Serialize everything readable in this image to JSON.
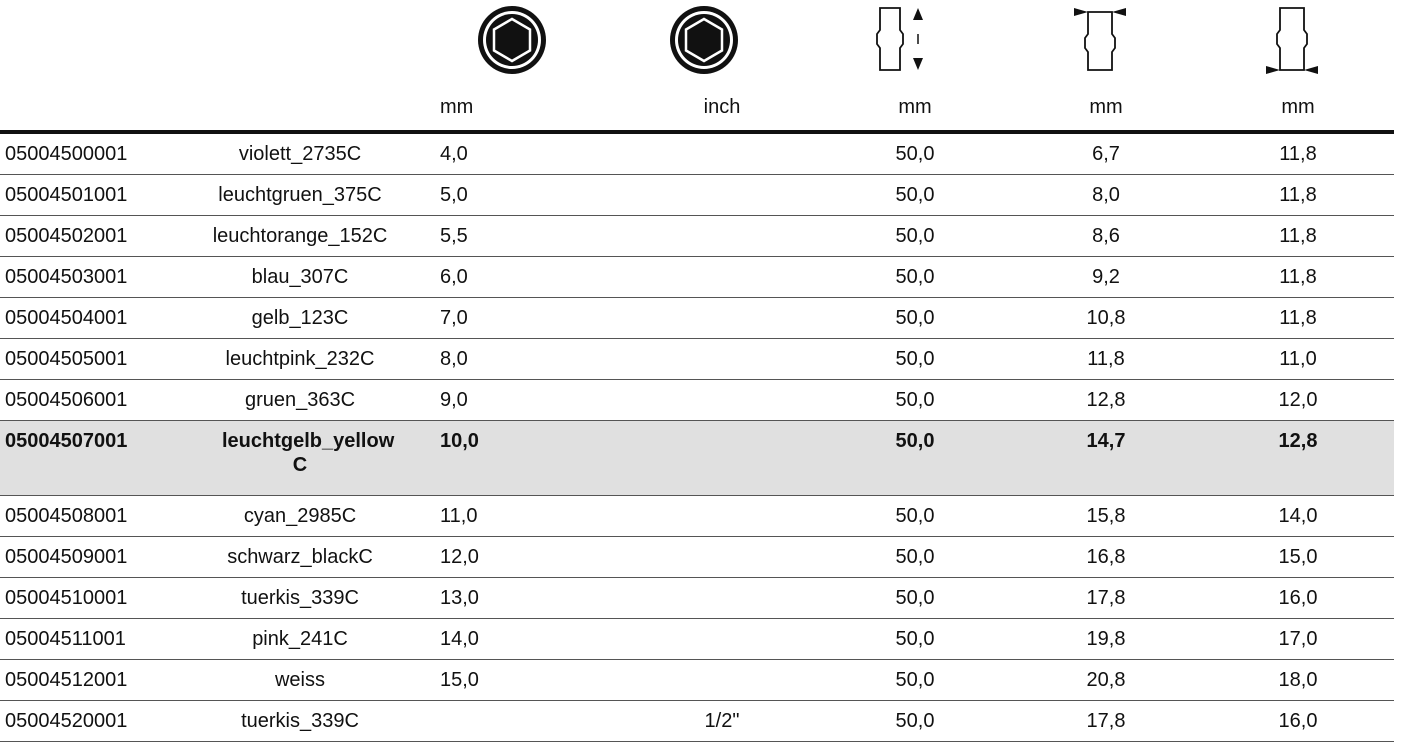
{
  "icons": [
    {
      "name": "hexagon-socket-mm-icon"
    },
    {
      "name": "hexagon-socket-inch-icon"
    },
    {
      "name": "socket-length-icon"
    },
    {
      "name": "socket-top-diameter-icon"
    },
    {
      "name": "socket-bottom-diameter-icon"
    }
  ],
  "columns": [
    "",
    "",
    "mm",
    "inch",
    "mm",
    "mm",
    "mm"
  ],
  "rows": [
    {
      "code": "05004500001",
      "color": "violett_2735C",
      "mm": "4,0",
      "inch": "",
      "c3": "50,0",
      "c4": "6,7",
      "c5": "11,8",
      "highlight": false
    },
    {
      "code": "05004501001",
      "color": "leuchtgruen_375C",
      "mm": "5,0",
      "inch": "",
      "c3": "50,0",
      "c4": "8,0",
      "c5": "11,8",
      "highlight": false
    },
    {
      "code": "05004502001",
      "color": "leuchtorange_152C",
      "mm": "5,5",
      "inch": "",
      "c3": "50,0",
      "c4": "8,6",
      "c5": "11,8",
      "highlight": false
    },
    {
      "code": "05004503001",
      "color": "blau_307C",
      "mm": "6,0",
      "inch": "",
      "c3": "50,0",
      "c4": "9,2",
      "c5": "11,8",
      "highlight": false
    },
    {
      "code": "05004504001",
      "color": "gelb_123C",
      "mm": "7,0",
      "inch": "",
      "c3": "50,0",
      "c4": "10,8",
      "c5": "11,8",
      "highlight": false
    },
    {
      "code": "05004505001",
      "color": "leuchtpink_232C",
      "mm": "8,0",
      "inch": "",
      "c3": "50,0",
      "c4": "11,8",
      "c5": "11,0",
      "highlight": false
    },
    {
      "code": "05004506001",
      "color": "gruen_363C",
      "mm": "9,0",
      "inch": "",
      "c3": "50,0",
      "c4": "12,8",
      "c5": "12,0",
      "highlight": false
    },
    {
      "code": "05004507001",
      "color": "leuchtgelb_yellow C",
      "mm": "10,0",
      "inch": "",
      "c3": "50,0",
      "c4": "14,7",
      "c5": "12,8",
      "highlight": true
    },
    {
      "code": "05004508001",
      "color": "cyan_2985C",
      "mm": "11,0",
      "inch": "",
      "c3": "50,0",
      "c4": "15,8",
      "c5": "14,0",
      "highlight": false
    },
    {
      "code": "05004509001",
      "color": "schwarz_blackC",
      "mm": "12,0",
      "inch": "",
      "c3": "50,0",
      "c4": "16,8",
      "c5": "15,0",
      "highlight": false
    },
    {
      "code": "05004510001",
      "color": "tuerkis_339C",
      "mm": "13,0",
      "inch": "",
      "c3": "50,0",
      "c4": "17,8",
      "c5": "16,0",
      "highlight": false
    },
    {
      "code": "05004511001",
      "color": "pink_241C",
      "mm": "14,0",
      "inch": "",
      "c3": "50,0",
      "c4": "19,8",
      "c5": "17,0",
      "highlight": false
    },
    {
      "code": "05004512001",
      "color": "weiss",
      "mm": "15,0",
      "inch": "",
      "c3": "50,0",
      "c4": "20,8",
      "c5": "18,0",
      "highlight": false
    },
    {
      "code": "05004520001",
      "color": "tuerkis_339C",
      "mm": "",
      "inch": "1/2\"",
      "c3": "50,0",
      "c4": "17,8",
      "c5": "16,0",
      "highlight": false
    }
  ]
}
